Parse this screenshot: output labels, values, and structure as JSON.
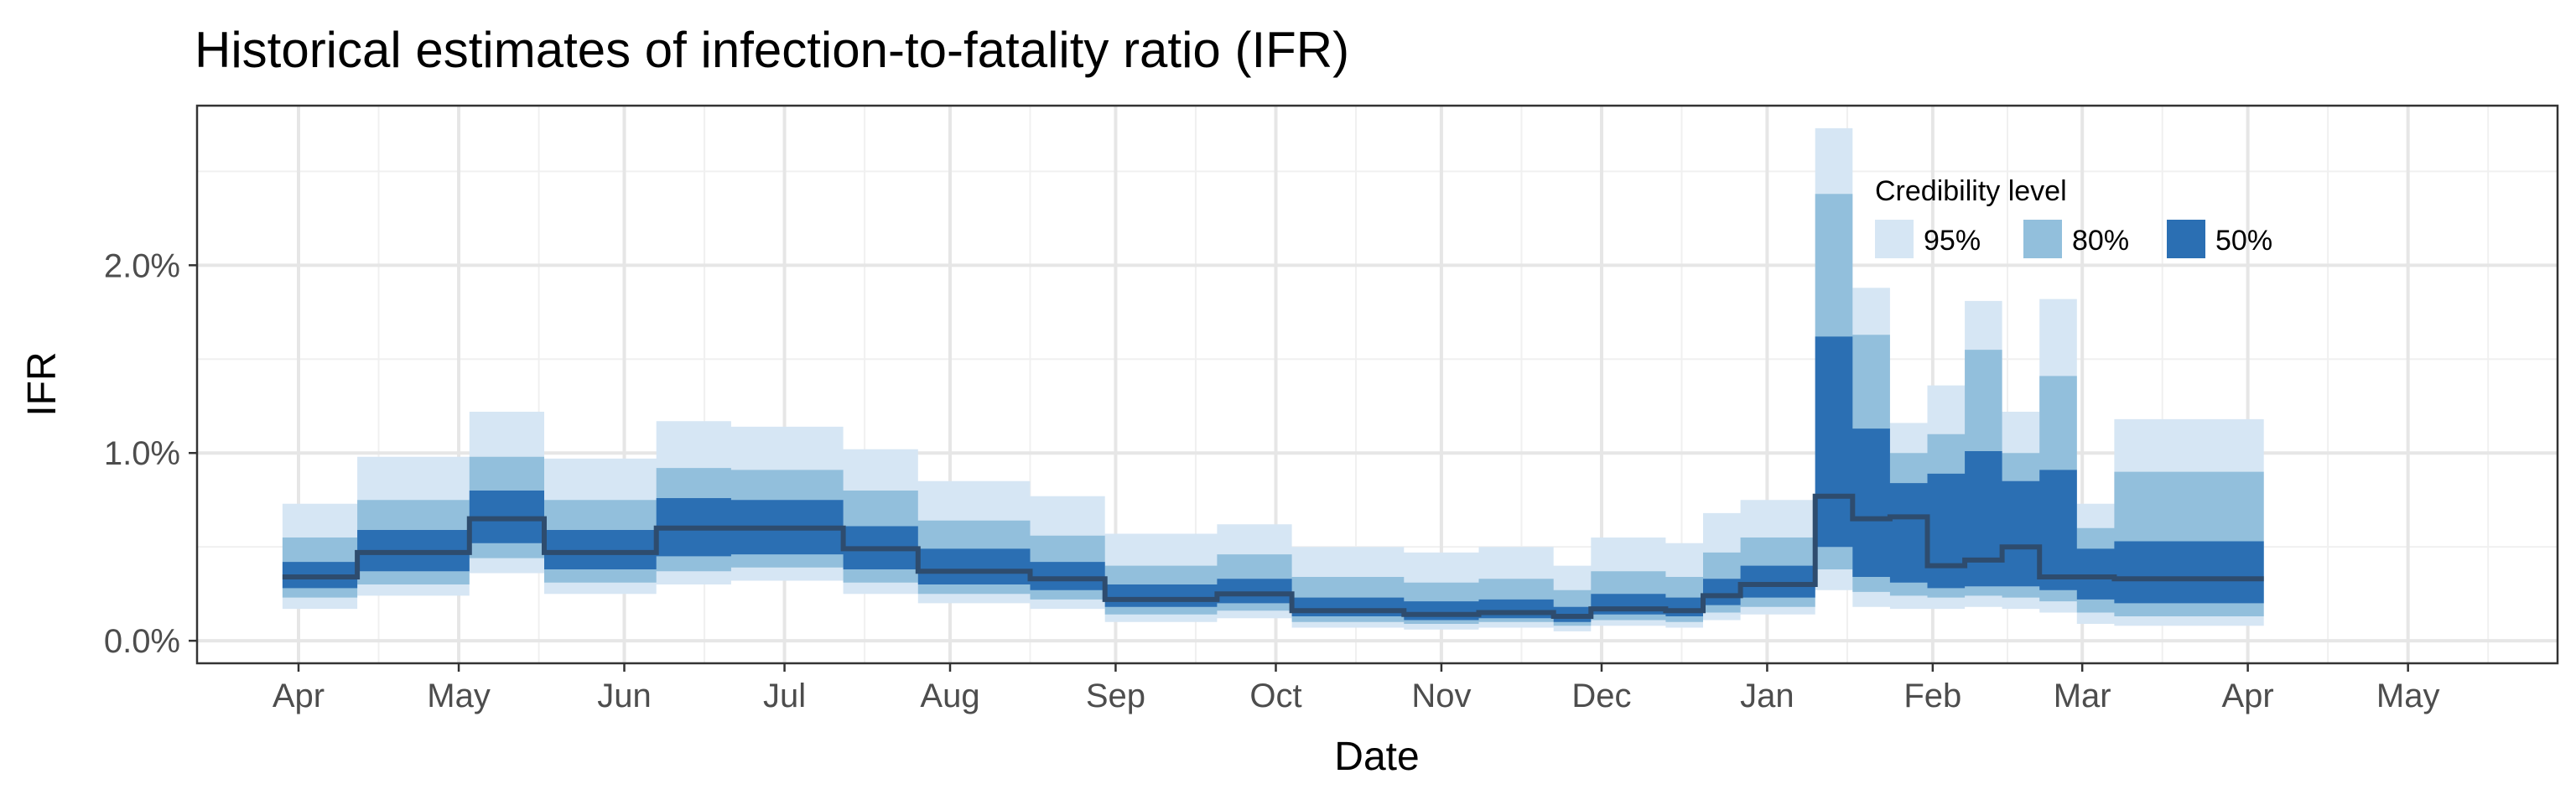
{
  "chart_data": {
    "type": "area",
    "title": "Historical estimates of infection-to-fatality ratio (IFR)",
    "xlabel": "Date",
    "ylabel": "IFR",
    "x_range": [
      "2020-03-13",
      "2021-05-29"
    ],
    "y_range": [
      -0.12,
      2.85
    ],
    "y_unit": "%",
    "x_ticks": [
      {
        "date": "2020-04-01",
        "label": "Apr"
      },
      {
        "date": "2020-05-01",
        "label": "May"
      },
      {
        "date": "2020-06-01",
        "label": "Jun"
      },
      {
        "date": "2020-07-01",
        "label": "Jul"
      },
      {
        "date": "2020-08-01",
        "label": "Aug"
      },
      {
        "date": "2020-09-01",
        "label": "Sep"
      },
      {
        "date": "2020-10-01",
        "label": "Oct"
      },
      {
        "date": "2020-11-01",
        "label": "Nov"
      },
      {
        "date": "2020-12-01",
        "label": "Dec"
      },
      {
        "date": "2021-01-01",
        "label": "Jan"
      },
      {
        "date": "2021-02-01",
        "label": "Feb"
      },
      {
        "date": "2021-03-01",
        "label": "Mar"
      },
      {
        "date": "2021-04-01",
        "label": "Apr"
      },
      {
        "date": "2021-05-01",
        "label": "May"
      }
    ],
    "x_minor_ticks": [
      "2020-04-16",
      "2020-05-16",
      "2020-06-16",
      "2020-07-16",
      "2020-08-16",
      "2020-09-16",
      "2020-10-16",
      "2020-11-16",
      "2020-12-16",
      "2021-01-16",
      "2021-02-15",
      "2021-03-16",
      "2021-04-16",
      "2021-05-16"
    ],
    "y_ticks": [
      {
        "value": 0,
        "label": "0.0%"
      },
      {
        "value": 1,
        "label": "1.0%"
      },
      {
        "value": 2,
        "label": "2.0%"
      }
    ],
    "y_minor_ticks": [
      0.5,
      1.5,
      2.5
    ],
    "grid": true,
    "legend": {
      "title": "Credibility level",
      "position": "top-right",
      "items": [
        {
          "label": "95%",
          "color": "#d6e6f4"
        },
        {
          "label": "80%",
          "color": "#92bfdc"
        },
        {
          "label": "50%",
          "color": "#2b6fb3"
        }
      ]
    },
    "median_color": "#2e4c6e",
    "steps": [
      {
        "start": "2020-03-29",
        "end": "2020-04-12",
        "lo95": 0.17,
        "lo80": 0.23,
        "lo50": 0.28,
        "median": 0.34,
        "hi50": 0.42,
        "hi80": 0.55,
        "hi95": 0.73
      },
      {
        "start": "2020-04-12",
        "end": "2020-05-03",
        "lo95": 0.24,
        "lo80": 0.3,
        "lo50": 0.37,
        "median": 0.47,
        "hi50": 0.59,
        "hi80": 0.75,
        "hi95": 0.98
      },
      {
        "start": "2020-05-03",
        "end": "2020-05-17",
        "lo95": 0.36,
        "lo80": 0.44,
        "lo50": 0.52,
        "median": 0.65,
        "hi50": 0.8,
        "hi80": 0.98,
        "hi95": 1.22
      },
      {
        "start": "2020-05-17",
        "end": "2020-06-07",
        "lo95": 0.25,
        "lo80": 0.31,
        "lo50": 0.38,
        "median": 0.47,
        "hi50": 0.59,
        "hi80": 0.75,
        "hi95": 0.97
      },
      {
        "start": "2020-06-07",
        "end": "2020-06-21",
        "lo95": 0.3,
        "lo80": 0.37,
        "lo50": 0.45,
        "median": 0.6,
        "hi50": 0.76,
        "hi80": 0.92,
        "hi95": 1.17
      },
      {
        "start": "2020-06-21",
        "end": "2020-07-12",
        "lo95": 0.32,
        "lo80": 0.39,
        "lo50": 0.46,
        "median": 0.6,
        "hi50": 0.75,
        "hi80": 0.91,
        "hi95": 1.14
      },
      {
        "start": "2020-07-12",
        "end": "2020-07-26",
        "lo95": 0.25,
        "lo80": 0.31,
        "lo50": 0.38,
        "median": 0.49,
        "hi50": 0.61,
        "hi80": 0.8,
        "hi95": 1.02
      },
      {
        "start": "2020-07-26",
        "end": "2020-08-16",
        "lo95": 0.2,
        "lo80": 0.25,
        "lo50": 0.3,
        "median": 0.37,
        "hi50": 0.49,
        "hi80": 0.64,
        "hi95": 0.85
      },
      {
        "start": "2020-08-16",
        "end": "2020-08-30",
        "lo95": 0.17,
        "lo80": 0.22,
        "lo50": 0.27,
        "median": 0.33,
        "hi50": 0.42,
        "hi80": 0.56,
        "hi95": 0.77
      },
      {
        "start": "2020-08-30",
        "end": "2020-09-20",
        "lo95": 0.1,
        "lo80": 0.14,
        "lo50": 0.18,
        "median": 0.22,
        "hi50": 0.3,
        "hi80": 0.4,
        "hi95": 0.57
      },
      {
        "start": "2020-09-20",
        "end": "2020-10-04",
        "lo95": 0.12,
        "lo80": 0.16,
        "lo50": 0.2,
        "median": 0.25,
        "hi50": 0.33,
        "hi80": 0.46,
        "hi95": 0.62
      },
      {
        "start": "2020-10-04",
        "end": "2020-10-25",
        "lo95": 0.07,
        "lo80": 0.1,
        "lo50": 0.13,
        "median": 0.16,
        "hi50": 0.23,
        "hi80": 0.34,
        "hi95": 0.5
      },
      {
        "start": "2020-10-25",
        "end": "2020-11-08",
        "lo95": 0.06,
        "lo80": 0.09,
        "lo50": 0.11,
        "median": 0.14,
        "hi50": 0.21,
        "hi80": 0.31,
        "hi95": 0.47
      },
      {
        "start": "2020-11-08",
        "end": "2020-11-22",
        "lo95": 0.07,
        "lo80": 0.1,
        "lo50": 0.12,
        "median": 0.15,
        "hi50": 0.22,
        "hi80": 0.33,
        "hi95": 0.5
      },
      {
        "start": "2020-11-22",
        "end": "2020-11-29",
        "lo95": 0.05,
        "lo80": 0.08,
        "lo50": 0.1,
        "median": 0.13,
        "hi50": 0.18,
        "hi80": 0.27,
        "hi95": 0.4
      },
      {
        "start": "2020-11-29",
        "end": "2020-12-13",
        "lo95": 0.08,
        "lo80": 0.11,
        "lo50": 0.14,
        "median": 0.17,
        "hi50": 0.25,
        "hi80": 0.37,
        "hi95": 0.55
      },
      {
        "start": "2020-12-13",
        "end": "2020-12-20",
        "lo95": 0.07,
        "lo80": 0.1,
        "lo50": 0.13,
        "median": 0.16,
        "hi50": 0.23,
        "hi80": 0.34,
        "hi95": 0.52
      },
      {
        "start": "2020-12-20",
        "end": "2020-12-27",
        "lo95": 0.11,
        "lo80": 0.15,
        "lo50": 0.19,
        "median": 0.24,
        "hi50": 0.33,
        "hi80": 0.47,
        "hi95": 0.68
      },
      {
        "start": "2020-12-27",
        "end": "2021-01-10",
        "lo95": 0.14,
        "lo80": 0.18,
        "lo50": 0.23,
        "median": 0.3,
        "hi50": 0.4,
        "hi80": 0.55,
        "hi95": 0.75
      },
      {
        "start": "2021-01-10",
        "end": "2021-01-17",
        "lo95": 0.27,
        "lo80": 0.38,
        "lo50": 0.5,
        "median": 0.77,
        "hi50": 1.62,
        "hi80": 2.38,
        "hi95": 2.73
      },
      {
        "start": "2021-01-17",
        "end": "2021-01-24",
        "lo95": 0.18,
        "lo80": 0.26,
        "lo50": 0.34,
        "median": 0.65,
        "hi50": 1.13,
        "hi80": 1.63,
        "hi95": 1.88
      },
      {
        "start": "2021-01-24",
        "end": "2021-01-31",
        "lo95": 0.17,
        "lo80": 0.24,
        "lo50": 0.31,
        "median": 0.66,
        "hi50": 0.84,
        "hi80": 1.0,
        "hi95": 1.16
      },
      {
        "start": "2021-01-31",
        "end": "2021-02-07",
        "lo95": 0.17,
        "lo80": 0.23,
        "lo50": 0.28,
        "median": 0.4,
        "hi50": 0.89,
        "hi80": 1.1,
        "hi95": 1.36
      },
      {
        "start": "2021-02-07",
        "end": "2021-02-14",
        "lo95": 0.18,
        "lo80": 0.24,
        "lo50": 0.29,
        "median": 0.43,
        "hi50": 1.01,
        "hi80": 1.55,
        "hi95": 1.81
      },
      {
        "start": "2021-02-14",
        "end": "2021-02-21",
        "lo95": 0.17,
        "lo80": 0.23,
        "lo50": 0.29,
        "median": 0.5,
        "hi50": 0.85,
        "hi80": 1.0,
        "hi95": 1.22
      },
      {
        "start": "2021-02-21",
        "end": "2021-02-28",
        "lo95": 0.15,
        "lo80": 0.21,
        "lo50": 0.27,
        "median": 0.34,
        "hi50": 0.91,
        "hi80": 1.41,
        "hi95": 1.82
      },
      {
        "start": "2021-02-28",
        "end": "2021-03-07",
        "lo95": 0.09,
        "lo80": 0.15,
        "lo50": 0.22,
        "median": 0.34,
        "hi50": 0.49,
        "hi80": 0.6,
        "hi95": 0.73
      },
      {
        "start": "2021-03-07",
        "end": "2021-04-04",
        "lo95": 0.08,
        "lo80": 0.13,
        "lo50": 0.2,
        "median": 0.33,
        "hi50": 0.53,
        "hi80": 0.9,
        "hi95": 1.18
      }
    ]
  }
}
